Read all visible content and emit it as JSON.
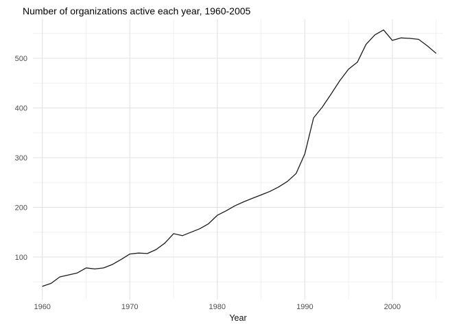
{
  "page": {
    "background": "#ffffff"
  },
  "chart_data": {
    "type": "line",
    "title": "Number of organizations active each year, 1960-2005",
    "xlabel": "Year",
    "ylabel": "",
    "legend": false,
    "grid": true,
    "series_name": "organizations-active",
    "x": [
      1960,
      1961,
      1962,
      1963,
      1964,
      1965,
      1966,
      1967,
      1968,
      1969,
      1970,
      1971,
      1972,
      1973,
      1974,
      1975,
      1976,
      1977,
      1978,
      1979,
      1980,
      1981,
      1982,
      1983,
      1984,
      1985,
      1986,
      1987,
      1988,
      1989,
      1990,
      1991,
      1992,
      1993,
      1994,
      1995,
      1996,
      1997,
      1998,
      1999,
      2000,
      2001,
      2002,
      2003,
      2004,
      2005
    ],
    "values": [
      41,
      47,
      60,
      64,
      68,
      78,
      76,
      78,
      85,
      95,
      106,
      108,
      107,
      115,
      128,
      147,
      143,
      150,
      157,
      167,
      184,
      193,
      203,
      211,
      218,
      225,
      232,
      241,
      252,
      268,
      308,
      380,
      402,
      428,
      455,
      478,
      492,
      528,
      547,
      557,
      536,
      541,
      540,
      538,
      525,
      510
    ],
    "x_ticks_major": [
      1960,
      1970,
      1980,
      1990,
      2000
    ],
    "x_ticks_minor": [
      1965,
      1975,
      1985,
      1995,
      2005
    ],
    "y_ticks_major": [
      100,
      200,
      300,
      400,
      500
    ],
    "y_ticks_minor": [
      50,
      150,
      250,
      350,
      450,
      550
    ],
    "xlim": [
      1958.9,
      2005.8
    ],
    "ylim": [
      15,
      578
    ],
    "colors": {
      "line": "#1a1a1a",
      "grid_major": "#e2e2e2",
      "grid_minor": "#f0f0f0",
      "tick_label": "#4d4d4d",
      "title": "#000000",
      "axis_title": "#111111",
      "background": "#ffffff"
    }
  }
}
